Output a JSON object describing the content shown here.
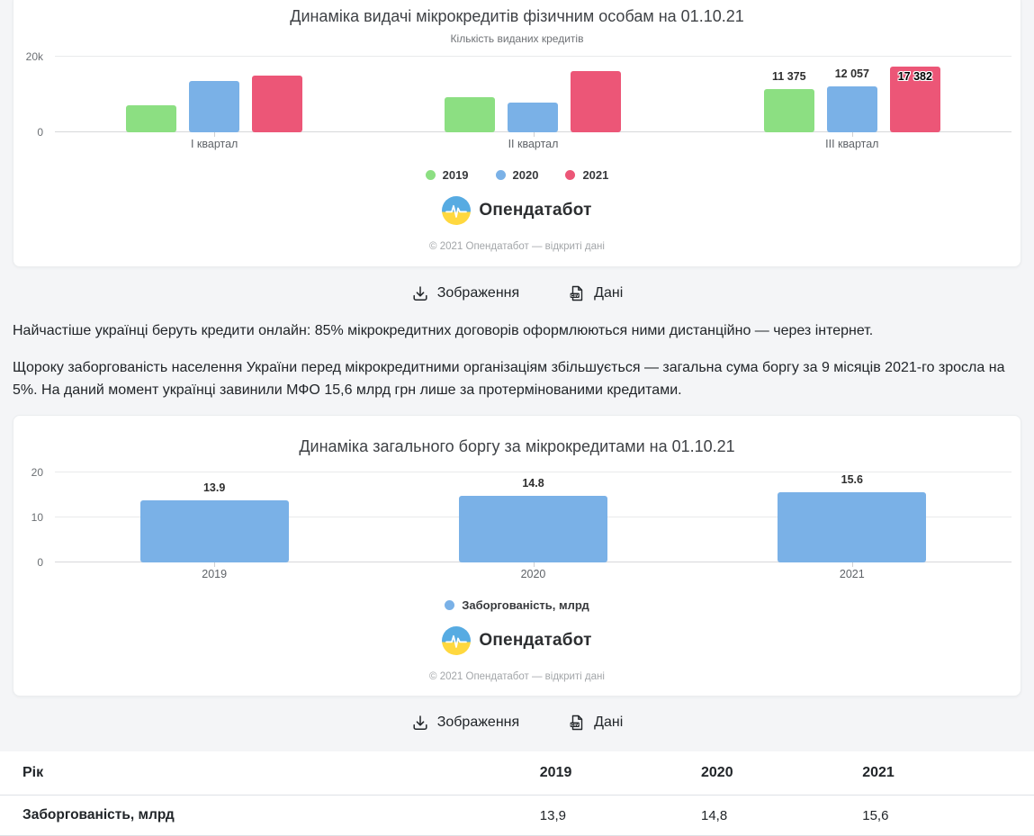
{
  "branding": {
    "logo_text": "Опендатабот",
    "copyright": "© 2021 Опендатабот — відкриті дані"
  },
  "actions": {
    "image_label": "Зображення",
    "data_label": "Дані"
  },
  "paragraphs": [
    "Найчастіше українці беруть кредити онлайн: 85% мікрокредитних договорів оформлюються ними дистанційно — через інтернет.",
    "Щороку заборгованість населення України перед мікрокредитними організаціям збільшується — загальна сума боргу за 9 місяців 2021-го зросла на 5%. На даний момент українці завинили МФО 15,6 млрд грн лише за протермінованими кредитами."
  ],
  "chart_data": [
    {
      "type": "bar",
      "title": "Динаміка видачі мікрокредитів фізичним особам на 01.10.21",
      "subtitle": "Кількість виданих кредитів",
      "categories": [
        "І квартал",
        "ІІ квартал",
        "ІІІ квартал"
      ],
      "series": [
        {
          "name": "2019",
          "color": "#8cdf82",
          "values": [
            7100,
            9400,
            11375
          ],
          "labels": [
            null,
            null,
            {
              "text": "11 375",
              "inside": false
            }
          ]
        },
        {
          "name": "2020",
          "color": "#7ab1e7",
          "values": [
            13600,
            7900,
            12057
          ],
          "labels": [
            null,
            null,
            {
              "text": "12 057",
              "inside": false
            }
          ]
        },
        {
          "name": "2021",
          "color": "#ec5677",
          "values": [
            15000,
            16100,
            17382
          ],
          "labels": [
            null,
            null,
            {
              "text": "17 382",
              "inside": true
            }
          ]
        }
      ],
      "ylim": [
        0,
        20000
      ],
      "yticks": [
        {
          "value": 0,
          "label": "0"
        },
        {
          "value": 20000,
          "label": "20k"
        }
      ],
      "grid": true,
      "legend_position": "bottom"
    },
    {
      "type": "bar",
      "title": "Динаміка загального боргу за мікрокредитами на 01.10.21",
      "subtitle": "",
      "categories": [
        "2019",
        "2020",
        "2021"
      ],
      "series": [
        {
          "name": "Заборгованість, млрд",
          "color": "#7ab1e7",
          "values": [
            13.9,
            14.8,
            15.6
          ],
          "labels": [
            {
              "text": "13.9"
            },
            {
              "text": "14.8"
            },
            {
              "text": "15.6"
            }
          ]
        }
      ],
      "ylim": [
        0,
        20
      ],
      "yticks": [
        {
          "value": 0,
          "label": "0"
        },
        {
          "value": 10,
          "label": "10"
        },
        {
          "value": 20,
          "label": "20"
        }
      ],
      "grid": true,
      "legend_position": "bottom"
    }
  ],
  "table": {
    "headers": [
      "Рік",
      "2019",
      "2020",
      "2021"
    ],
    "rows": [
      [
        "Заборгованість, млрд",
        "13,9",
        "14,8",
        "15,6"
      ]
    ]
  }
}
